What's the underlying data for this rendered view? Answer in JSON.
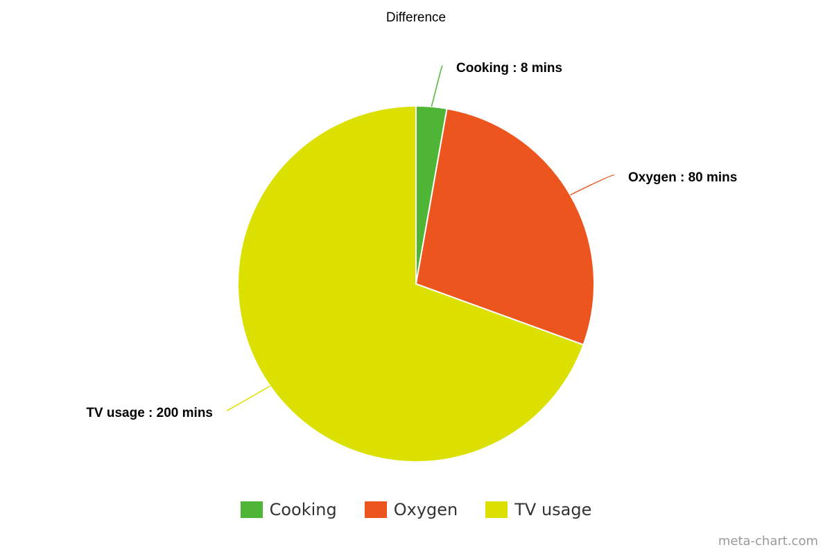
{
  "chart_data": {
    "type": "pie",
    "title": "Difference",
    "categories": [
      "Cooking",
      "Oxygen",
      "TV usage"
    ],
    "values": [
      8,
      80,
      200
    ],
    "colors": [
      "#4fb537",
      "#ec561e",
      "#dbe000"
    ],
    "data_labels": [
      "Cooking : 8 mins",
      "Oxygen : 80 mins",
      "TV usage : 200 mins"
    ],
    "legend_position": "bottom",
    "start_angle": "top",
    "direction": "clockwise"
  },
  "watermark": "meta-chart.com"
}
